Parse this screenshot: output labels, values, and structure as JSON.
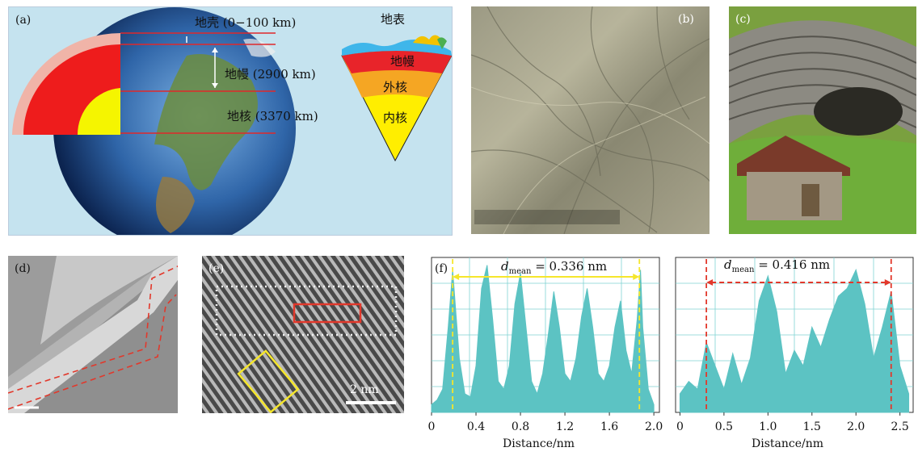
{
  "panel_a": {
    "label": "(a)",
    "crust_label": "地壳 (0−100 km)",
    "mantle_label": "地幔 (2900 km)",
    "core_label": "地核 (3370 km)",
    "surface_label": "地表",
    "wedge_mantle": "地幔",
    "wedge_outer_core": "外核",
    "wedge_inner_core": "内核"
  },
  "panel_b": {
    "label": "(b)"
  },
  "panel_c": {
    "label": "(c)"
  },
  "panel_d": {
    "label": "(d)"
  },
  "panel_e": {
    "label": "(e)",
    "scalebar": "2 nm"
  },
  "panel_f": {
    "label": "(f)"
  },
  "chart_data": [
    {
      "type": "area",
      "title": "",
      "annotation": "d_mean = 0.336 nm",
      "xlabel": "Distance/nm",
      "ylabel": "",
      "xlim": [
        0,
        2.05
      ],
      "ylim": [
        0,
        1
      ],
      "xticks": [
        "0",
        "0.4",
        "0.8",
        "1.2",
        "1.6",
        "2.0"
      ],
      "xtick_values": [
        0,
        0.4,
        0.8,
        1.2,
        1.6,
        2.0
      ],
      "marker_lines": [
        0.19,
        1.87
      ],
      "grid": true,
      "color": "#5cc3c3",
      "x": [
        0.0,
        0.05,
        0.1,
        0.15,
        0.19,
        0.25,
        0.3,
        0.35,
        0.4,
        0.45,
        0.5,
        0.55,
        0.6,
        0.65,
        0.7,
        0.75,
        0.8,
        0.85,
        0.9,
        0.95,
        1.0,
        1.05,
        1.1,
        1.15,
        1.2,
        1.25,
        1.3,
        1.35,
        1.4,
        1.45,
        1.5,
        1.55,
        1.6,
        1.65,
        1.7,
        1.75,
        1.8,
        1.85,
        1.88,
        1.9,
        1.95,
        2.0
      ],
      "y": [
        0.05,
        0.08,
        0.15,
        0.55,
        0.92,
        0.35,
        0.12,
        0.1,
        0.3,
        0.8,
        0.95,
        0.6,
        0.2,
        0.15,
        0.3,
        0.7,
        0.9,
        0.55,
        0.2,
        0.12,
        0.25,
        0.5,
        0.78,
        0.55,
        0.25,
        0.2,
        0.35,
        0.62,
        0.8,
        0.55,
        0.25,
        0.2,
        0.3,
        0.55,
        0.72,
        0.4,
        0.25,
        0.6,
        0.92,
        0.55,
        0.15,
        0.05
      ]
    },
    {
      "type": "area",
      "title": "",
      "annotation": "d_mean = 0.416 nm",
      "xlabel": "Distance/nm",
      "ylabel": "",
      "xlim": [
        -0.05,
        2.65
      ],
      "ylim": [
        0,
        1
      ],
      "xticks": [
        "0",
        "0.5",
        "1.0",
        "1.5",
        "2.0",
        "2.5"
      ],
      "xtick_values": [
        0,
        0.5,
        1.0,
        1.5,
        2.0,
        2.5
      ],
      "marker_lines": [
        0.3,
        2.4
      ],
      "grid": true,
      "color": "#5cc3c3",
      "x": [
        0.0,
        0.1,
        0.2,
        0.3,
        0.4,
        0.5,
        0.6,
        0.7,
        0.8,
        0.9,
        1.0,
        1.1,
        1.2,
        1.3,
        1.4,
        1.5,
        1.6,
        1.7,
        1.8,
        1.9,
        2.0,
        2.1,
        2.2,
        2.3,
        2.4,
        2.5,
        2.6
      ],
      "y": [
        0.12,
        0.2,
        0.15,
        0.45,
        0.3,
        0.15,
        0.38,
        0.18,
        0.35,
        0.72,
        0.88,
        0.65,
        0.25,
        0.4,
        0.3,
        0.55,
        0.42,
        0.6,
        0.75,
        0.8,
        0.92,
        0.7,
        0.35,
        0.55,
        0.78,
        0.3,
        0.12
      ]
    }
  ],
  "colors": {
    "annot_yellow": "#f5e62b",
    "annot_red": "#e2382b",
    "scan_teal": "#5cc3c3"
  }
}
